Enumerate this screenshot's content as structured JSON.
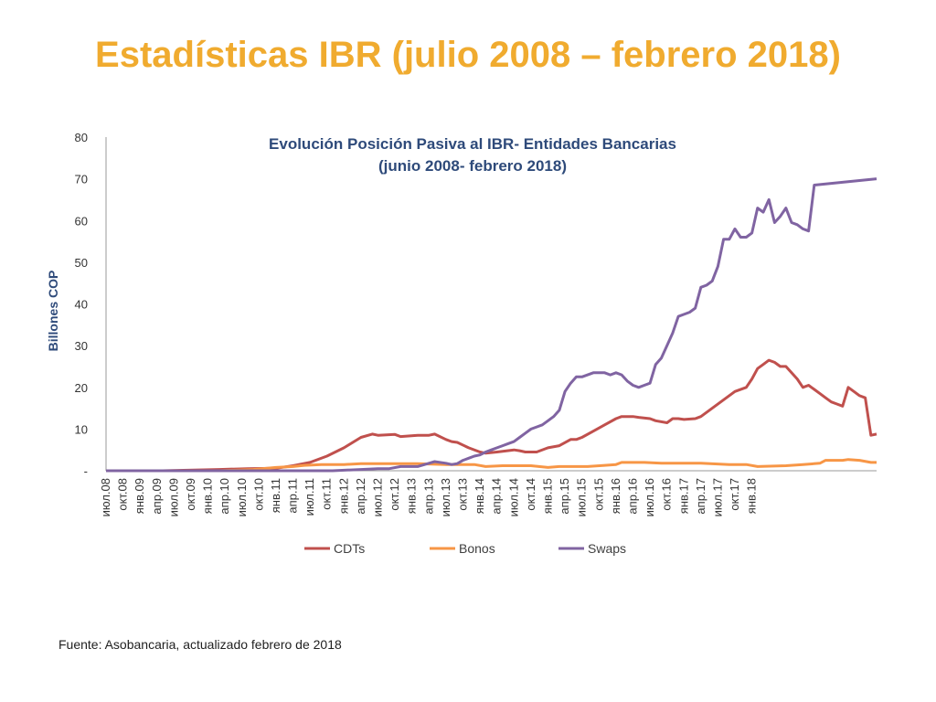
{
  "slide": {
    "title": "Estadísticas IBR (julio 2008 – febrero 2018)",
    "source": "Fuente: Asobancaria, actualizado febrero de 2018"
  },
  "colors": {
    "title": "#f0ab2f",
    "chart_title": "#2e4a7a",
    "CDTs": "#c0504d",
    "Bonos": "#f79646",
    "Swaps": "#8064a2"
  },
  "chart_data": {
    "type": "line",
    "title_lines": [
      "Evolución Posición Pasiva al IBR- Entidades Bancarias",
      "(junio 2008- febrero 2018)"
    ],
    "xlabel": "",
    "ylabel": "Billones COP",
    "ylim": [
      0,
      80
    ],
    "yticks": [
      "-",
      "10",
      "20",
      "30",
      "40",
      "50",
      "60",
      "70",
      "80"
    ],
    "grid": false,
    "legend": "bottom",
    "x_tick_labels": [
      "июл.08",
      "окт.08",
      "янв.09",
      "апр.09",
      "июл.09",
      "окт.09",
      "янв.10",
      "апр.10",
      "июл.10",
      "окт.10",
      "янв.11",
      "апр.11",
      "июл.11",
      "окт.11",
      "янв.12",
      "апр.12",
      "июл.12",
      "окт.12",
      "янв.13",
      "апр.13",
      "июл.13",
      "окт.13",
      "янв.14",
      "апр.14",
      "июл.14",
      "окт.14",
      "янв.15",
      "апр.15",
      "июл.15",
      "окт.15",
      "янв.16",
      "апр.16",
      "июл.16",
      "окт.16",
      "янв.17",
      "апр.17",
      "июл.17",
      "окт.17",
      "янв.18"
    ],
    "series": [
      {
        "name": "CDTs",
        "points": [
          [
            0,
            0
          ],
          [
            10,
            0
          ],
          [
            20,
            0.3
          ],
          [
            25,
            0.5
          ],
          [
            30,
            0.6
          ],
          [
            33,
            1.2
          ],
          [
            36,
            2
          ],
          [
            39,
            3.5
          ],
          [
            42,
            5.5
          ],
          [
            45,
            8
          ],
          [
            47,
            8.8
          ],
          [
            48,
            8.5
          ],
          [
            51,
            8.7
          ],
          [
            52,
            8.2
          ],
          [
            55,
            8.5
          ],
          [
            57,
            8.5
          ],
          [
            58,
            8.8
          ],
          [
            60,
            7.5
          ],
          [
            61,
            7
          ],
          [
            62,
            6.8
          ],
          [
            64,
            5.5
          ],
          [
            66,
            4.5
          ],
          [
            67,
            4.2
          ],
          [
            69,
            4.5
          ],
          [
            72,
            5
          ],
          [
            73,
            4.8
          ],
          [
            74,
            4.5
          ],
          [
            75,
            4.5
          ],
          [
            76,
            4.5
          ],
          [
            78,
            5.5
          ],
          [
            80,
            6
          ],
          [
            82,
            7.5
          ],
          [
            83,
            7.5
          ],
          [
            84,
            8
          ],
          [
            86,
            9.5
          ],
          [
            88,
            11
          ],
          [
            90,
            12.5
          ],
          [
            91,
            13
          ],
          [
            92,
            13
          ],
          [
            93,
            13
          ],
          [
            94,
            12.8
          ],
          [
            96,
            12.5
          ],
          [
            97,
            12
          ],
          [
            99,
            11.5
          ],
          [
            100,
            12.5
          ],
          [
            101,
            12.5
          ],
          [
            102,
            12.3
          ],
          [
            104,
            12.5
          ],
          [
            105,
            13
          ],
          [
            107,
            15
          ],
          [
            109,
            17
          ],
          [
            111,
            19
          ],
          [
            113,
            20
          ],
          [
            114,
            22
          ],
          [
            115,
            24.5
          ],
          [
            116,
            25.5
          ],
          [
            117,
            26.5
          ],
          [
            118,
            26
          ],
          [
            119,
            25
          ],
          [
            120,
            25
          ],
          [
            121,
            23.5
          ],
          [
            122,
            22
          ],
          [
            123,
            20
          ],
          [
            124,
            20.5
          ],
          [
            125,
            19.5
          ],
          [
            126,
            18.5
          ],
          [
            127,
            17.5
          ],
          [
            128,
            16.5
          ],
          [
            129,
            16
          ],
          [
            130,
            15.5
          ],
          [
            131,
            20
          ],
          [
            132,
            19
          ],
          [
            133,
            18
          ],
          [
            134,
            17.5
          ],
          [
            135,
            8.5
          ],
          [
            136,
            8.8
          ]
        ]
      },
      {
        "name": "Bonos",
        "points": [
          [
            0,
            0
          ],
          [
            20,
            0
          ],
          [
            26,
            0.3
          ],
          [
            30,
            0.8
          ],
          [
            33,
            1
          ],
          [
            35,
            1.3
          ],
          [
            38,
            1.5
          ],
          [
            42,
            1.5
          ],
          [
            45,
            1.7
          ],
          [
            50,
            1.7
          ],
          [
            55,
            1.7
          ],
          [
            60,
            1.5
          ],
          [
            65,
            1.5
          ],
          [
            67,
            1
          ],
          [
            70,
            1.2
          ],
          [
            75,
            1.2
          ],
          [
            78,
            0.8
          ],
          [
            80,
            1
          ],
          [
            85,
            1
          ],
          [
            88,
            1.3
          ],
          [
            90,
            1.5
          ],
          [
            91,
            2
          ],
          [
            95,
            2
          ],
          [
            98,
            1.8
          ],
          [
            105,
            1.8
          ],
          [
            110,
            1.5
          ],
          [
            113,
            1.5
          ],
          [
            115,
            1
          ],
          [
            120,
            1.2
          ],
          [
            123,
            1.5
          ],
          [
            126,
            1.8
          ],
          [
            127,
            2.5
          ],
          [
            130,
            2.5
          ],
          [
            131,
            2.7
          ],
          [
            133,
            2.5
          ],
          [
            135,
            2
          ],
          [
            136,
            2
          ]
        ]
      },
      {
        "name": "Swaps",
        "points": [
          [
            0,
            0
          ],
          [
            40,
            0
          ],
          [
            45,
            0.3
          ],
          [
            48,
            0.5
          ],
          [
            50,
            0.5
          ],
          [
            52,
            1
          ],
          [
            55,
            1
          ],
          [
            57,
            1.8
          ],
          [
            58,
            2.2
          ],
          [
            60,
            1.8
          ],
          [
            61,
            1.5
          ],
          [
            62,
            1.7
          ],
          [
            63,
            2.5
          ],
          [
            64,
            3
          ],
          [
            65,
            3.5
          ],
          [
            66,
            3.8
          ],
          [
            67,
            4.5
          ],
          [
            68,
            5
          ],
          [
            69,
            5.5
          ],
          [
            70,
            6
          ],
          [
            71,
            6.5
          ],
          [
            72,
            7
          ],
          [
            73,
            8
          ],
          [
            74,
            9
          ],
          [
            75,
            10
          ],
          [
            76,
            10.5
          ],
          [
            77,
            11
          ],
          [
            78,
            12
          ],
          [
            79,
            13
          ],
          [
            80,
            14.5
          ],
          [
            81,
            19
          ],
          [
            82,
            21
          ],
          [
            83,
            22.5
          ],
          [
            84,
            22.5
          ],
          [
            85,
            23
          ],
          [
            86,
            23.5
          ],
          [
            87,
            23.5
          ],
          [
            88,
            23.5
          ],
          [
            89,
            23
          ],
          [
            90,
            23.5
          ],
          [
            91,
            23
          ],
          [
            92,
            21.5
          ],
          [
            93,
            20.5
          ],
          [
            94,
            20
          ],
          [
            95,
            20.5
          ],
          [
            96,
            21
          ],
          [
            97,
            25.5
          ],
          [
            98,
            27
          ],
          [
            99,
            30
          ],
          [
            100,
            33
          ],
          [
            101,
            37
          ],
          [
            102,
            37.5
          ],
          [
            103,
            38
          ],
          [
            104,
            39
          ],
          [
            105,
            44
          ],
          [
            106,
            44.5
          ],
          [
            107,
            45.5
          ],
          [
            108,
            49
          ],
          [
            109,
            55.5
          ],
          [
            110,
            55.5
          ],
          [
            111,
            58
          ],
          [
            112,
            56
          ],
          [
            113,
            56
          ],
          [
            114,
            57
          ],
          [
            115,
            63
          ],
          [
            116,
            62
          ],
          [
            117,
            65
          ],
          [
            118,
            59.5
          ],
          [
            119,
            61
          ],
          [
            120,
            63
          ],
          [
            121,
            59.5
          ],
          [
            122,
            59
          ],
          [
            123,
            58
          ],
          [
            124,
            57.5
          ],
          [
            125,
            68.5
          ],
          [
            136,
            70
          ]
        ]
      }
    ]
  }
}
